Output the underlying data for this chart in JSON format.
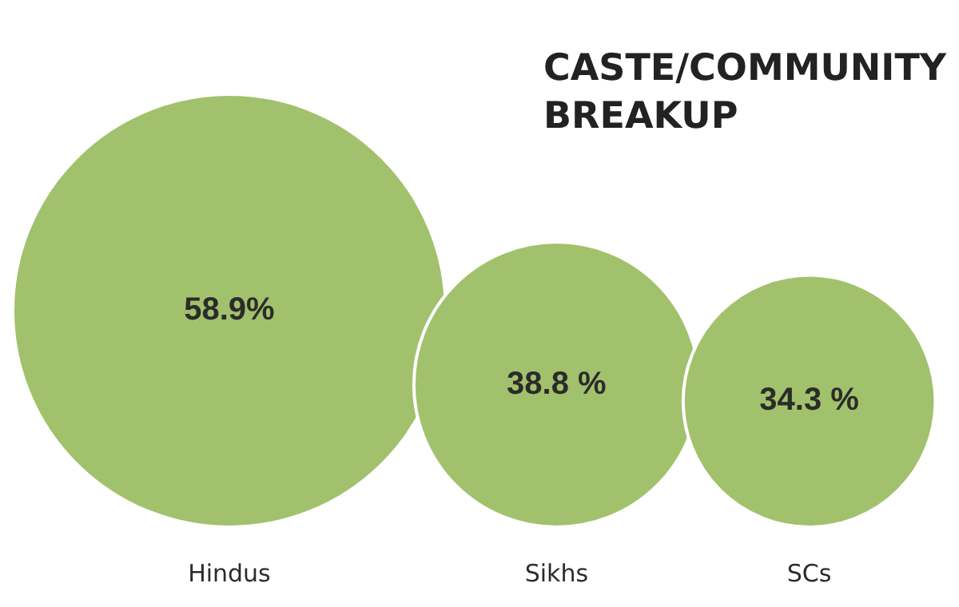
{
  "chart_data": {
    "type": "other",
    "title": "CASTE/COMMUNITY BREAKUP",
    "categories": [
      "Hindus",
      "Sikhs",
      "SCs"
    ],
    "values": [
      58.9,
      38.8,
      34.3
    ],
    "value_labels": [
      "58.9%",
      "38.8 %",
      "34.3 %"
    ],
    "color": "#a2c16c"
  }
}
